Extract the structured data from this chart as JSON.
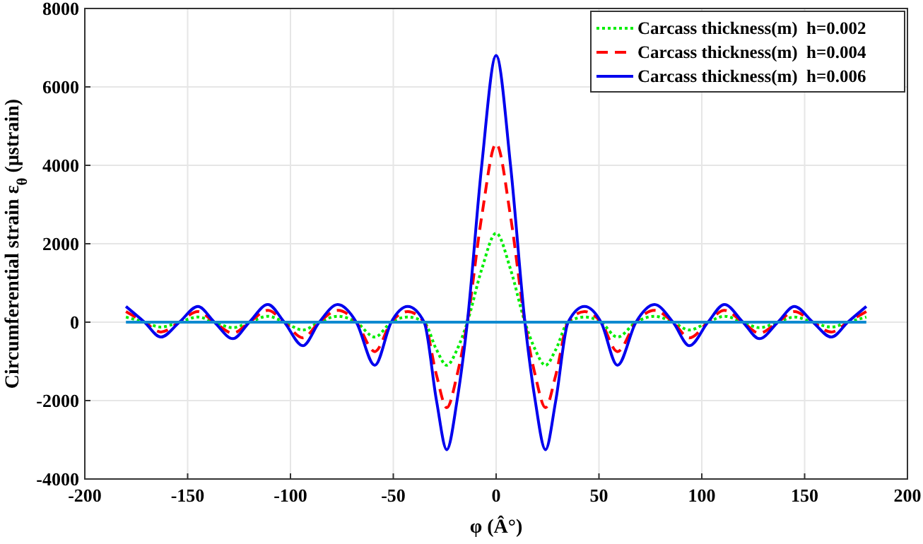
{
  "chart_data": {
    "type": "line",
    "xlabel": "φ (Â°)",
    "ylabel": "Circumferential strain ε$_{θ}$ (μstrain)",
    "x": [
      -180,
      -171,
      -163,
      -154,
      -145,
      -137,
      -128,
      -120,
      -111,
      -103,
      -94,
      -86,
      -77,
      -68,
      -59,
      -51,
      -43,
      -35,
      -29,
      -24,
      -19,
      -14,
      -7,
      0,
      7,
      14,
      19,
      24,
      29,
      35,
      43,
      51,
      59,
      68,
      77,
      86,
      94,
      103,
      111,
      120,
      128,
      137,
      145,
      154,
      163,
      171,
      180
    ],
    "series": [
      {
        "name": "Carcass thickness(m)  h=0.002",
        "color": "#00ee00",
        "line_style": "dotted",
        "values": [
          130,
          0,
          -125,
          0,
          130,
          0,
          -140,
          0,
          150,
          0,
          -200,
          0,
          150,
          0,
          -380,
          0,
          130,
          0,
          -700,
          -1100,
          -700,
          0,
          1350,
          2270,
          1350,
          0,
          -700,
          -1100,
          -700,
          0,
          130,
          0,
          -380,
          0,
          150,
          0,
          -200,
          0,
          150,
          0,
          -140,
          0,
          130,
          0,
          -125,
          0,
          130
        ]
      },
      {
        "name": "Carcass thickness(m)  h=0.004",
        "color": "#ff0000",
        "line_style": "dashed",
        "values": [
          270,
          0,
          -250,
          0,
          270,
          0,
          -280,
          0,
          300,
          0,
          -400,
          0,
          300,
          0,
          -750,
          0,
          270,
          0,
          -1350,
          -2180,
          -1350,
          0,
          2700,
          4550,
          2700,
          0,
          -1350,
          -2180,
          -1350,
          0,
          270,
          0,
          -750,
          0,
          300,
          0,
          -400,
          0,
          300,
          0,
          -280,
          0,
          270,
          0,
          -250,
          0,
          270
        ]
      },
      {
        "name": "Carcass thickness(m)  h=0.006",
        "color": "#0000ee",
        "line_style": "solid",
        "values": [
          400,
          0,
          -380,
          0,
          400,
          0,
          -420,
          0,
          450,
          0,
          -600,
          0,
          450,
          0,
          -1100,
          0,
          400,
          0,
          -2000,
          -3250,
          -2000,
          0,
          4000,
          6800,
          4000,
          0,
          -2000,
          -3250,
          -2000,
          0,
          400,
          0,
          -1100,
          0,
          450,
          0,
          -600,
          0,
          450,
          0,
          -420,
          0,
          400,
          0,
          -380,
          0,
          400
        ]
      },
      {
        "color": "#0f8ad0",
        "line_style": "solid",
        "values": [
          0,
          0,
          0,
          0,
          0,
          0,
          0,
          0,
          0,
          0,
          0,
          0,
          0,
          0,
          0,
          0,
          0,
          0,
          0,
          0,
          0,
          0,
          0,
          0,
          0,
          0,
          0,
          0,
          0,
          0,
          0,
          0,
          0,
          0,
          0,
          0,
          0,
          0,
          0,
          0,
          0,
          0,
          0,
          0,
          0,
          0,
          0
        ]
      }
    ],
    "xlim": [
      -200,
      200
    ],
    "xticks": [
      -200,
      -150,
      -100,
      -50,
      0,
      50,
      100,
      150,
      200
    ],
    "ylim": [
      -4000,
      8000
    ],
    "yticks": [
      -4000,
      -2000,
      0,
      2000,
      4000,
      6000,
      8000
    ],
    "grid": true,
    "legend": "top right",
    "marker": "none"
  }
}
